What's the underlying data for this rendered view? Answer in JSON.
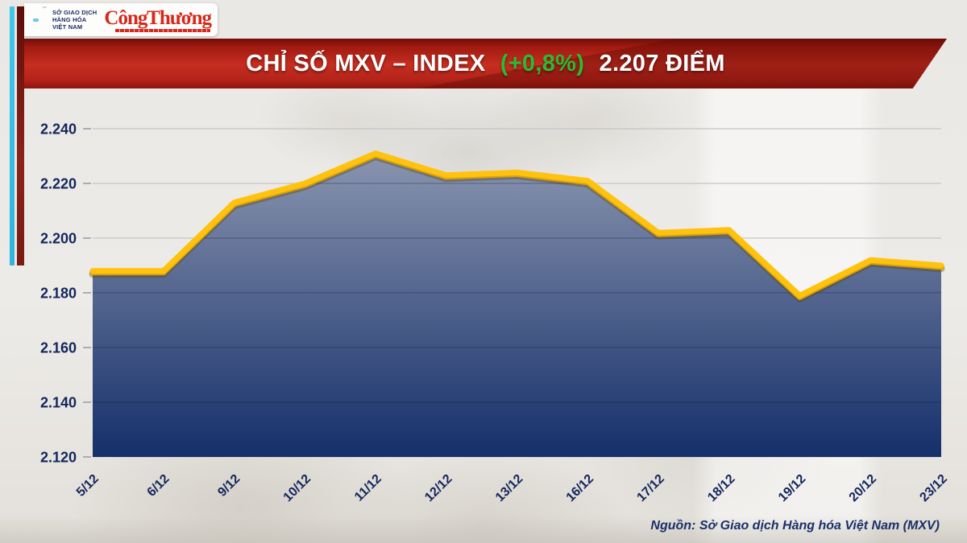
{
  "header": {
    "mxv_logo_lines": [
      "SỞ GIAO DỊCH",
      "HÀNG HÓA",
      "VIỆT NAM"
    ],
    "mxv_tm": "™",
    "congthuong_logo": "Công Thương"
  },
  "banner": {
    "title_main": "CHỈ SỐ MXV – INDEX",
    "title_change": "(+0,8%)",
    "title_value": "2.207 ĐIỂM",
    "change_color": "#2eb933"
  },
  "chart_data": {
    "type": "area",
    "title": "CHỈ SỐ MXV – INDEX (+0,8%) 2.207 ĐIỂM",
    "categories": [
      "5/12",
      "6/12",
      "9/12",
      "10/12",
      "11/12",
      "12/12",
      "13/12",
      "16/12",
      "17/12",
      "18/12",
      "19/12",
      "20/12",
      "23/12"
    ],
    "values": [
      2188,
      2188,
      2213,
      2220,
      2231,
      2223,
      2224,
      2221,
      2202,
      2203,
      2179,
      2192,
      2190
    ],
    "ylim": [
      2120,
      2240
    ],
    "ytick_step": 20,
    "ytick_labels": [
      "2.120",
      "2.140",
      "2.160",
      "2.180",
      "2.200",
      "2.220",
      "2.240"
    ],
    "grid": true,
    "legend": "none",
    "line_color": "#FFC20E",
    "line_shadow_color": "#DCA404",
    "fill_top_color": "#8A95AF",
    "fill_bottom_color": "#152F6A",
    "axis_label_color": "#13265C"
  },
  "footer": {
    "source": "Nguồn: Sở Giao dịch Hàng hóa Việt Nam (MXV)"
  }
}
